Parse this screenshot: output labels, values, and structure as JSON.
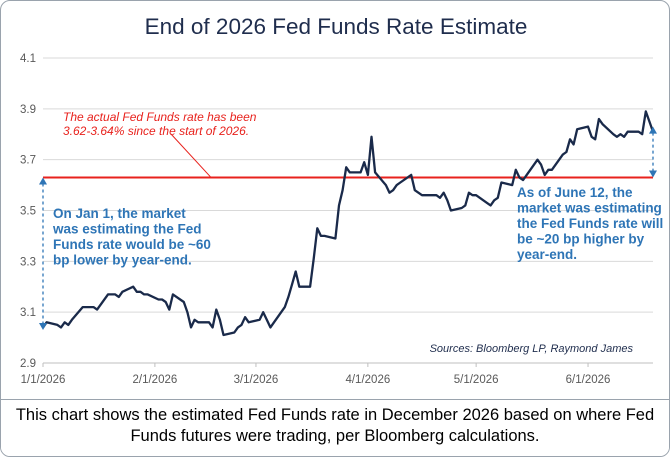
{
  "chart_data": {
    "type": "line",
    "title": "End of 2026 Fed Funds Rate Estimate",
    "xlabel": "",
    "ylabel": "",
    "x_tick_labels": [
      "1/1/2026",
      "2/1/2026",
      "3/1/2026",
      "4/1/2026",
      "5/1/2026",
      "6/1/2026"
    ],
    "y_tick_labels": [
      "2.9",
      "3.1",
      "3.3",
      "3.5",
      "3.7",
      "3.9",
      "4.1"
    ],
    "ylim": [
      2.9,
      4.1
    ],
    "xlim": [
      "2026-01-01",
      "2026-06-19"
    ],
    "grid": "horizontal",
    "series": [
      {
        "color": "#1a2a4a",
        "points": [
          [
            "2026-01-01",
            3.04
          ],
          [
            "2026-01-02",
            3.06
          ],
          [
            "2026-01-05",
            3.05
          ],
          [
            "2026-01-06",
            3.04
          ],
          [
            "2026-01-07",
            3.06
          ],
          [
            "2026-01-08",
            3.05
          ],
          [
            "2026-01-09",
            3.07
          ],
          [
            "2026-01-12",
            3.12
          ],
          [
            "2026-01-13",
            3.12
          ],
          [
            "2026-01-14",
            3.12
          ],
          [
            "2026-01-15",
            3.12
          ],
          [
            "2026-01-16",
            3.11
          ],
          [
            "2026-01-19",
            3.17
          ],
          [
            "2026-01-20",
            3.17
          ],
          [
            "2026-01-21",
            3.17
          ],
          [
            "2026-01-22",
            3.16
          ],
          [
            "2026-01-23",
            3.18
          ],
          [
            "2026-01-26",
            3.2
          ],
          [
            "2026-01-27",
            3.18
          ],
          [
            "2026-01-28",
            3.18
          ],
          [
            "2026-01-29",
            3.17
          ],
          [
            "2026-01-30",
            3.17
          ],
          [
            "2026-02-02",
            3.15
          ],
          [
            "2026-02-03",
            3.15
          ],
          [
            "2026-02-04",
            3.14
          ],
          [
            "2026-02-05",
            3.11
          ],
          [
            "2026-02-06",
            3.17
          ],
          [
            "2026-02-09",
            3.14
          ],
          [
            "2026-02-10",
            3.1
          ],
          [
            "2026-02-11",
            3.04
          ],
          [
            "2026-02-12",
            3.07
          ],
          [
            "2026-02-13",
            3.06
          ],
          [
            "2026-02-16",
            3.06
          ],
          [
            "2026-02-17",
            3.04
          ],
          [
            "2026-02-18",
            3.11
          ],
          [
            "2026-02-19",
            3.07
          ],
          [
            "2026-02-20",
            3.01
          ],
          [
            "2026-02-23",
            3.02
          ],
          [
            "2026-02-24",
            3.04
          ],
          [
            "2026-02-25",
            3.05
          ],
          [
            "2026-02-26",
            3.08
          ],
          [
            "2026-02-27",
            3.06
          ],
          [
            "2026-03-02",
            3.07
          ],
          [
            "2026-03-03",
            3.1
          ],
          [
            "2026-03-04",
            3.07
          ],
          [
            "2026-03-05",
            3.04
          ],
          [
            "2026-03-06",
            3.06
          ],
          [
            "2026-03-09",
            3.12
          ],
          [
            "2026-03-10",
            3.16
          ],
          [
            "2026-03-11",
            3.21
          ],
          [
            "2026-03-12",
            3.26
          ],
          [
            "2026-03-13",
            3.2
          ],
          [
            "2026-03-16",
            3.2
          ],
          [
            "2026-03-17",
            3.31
          ],
          [
            "2026-03-18",
            3.43
          ],
          [
            "2026-03-19",
            3.4
          ],
          [
            "2026-03-20",
            3.4
          ],
          [
            "2026-03-23",
            3.39
          ],
          [
            "2026-03-24",
            3.52
          ],
          [
            "2026-03-25",
            3.58
          ],
          [
            "2026-03-26",
            3.67
          ],
          [
            "2026-03-27",
            3.65
          ],
          [
            "2026-03-30",
            3.65
          ],
          [
            "2026-03-31",
            3.69
          ],
          [
            "2026-04-01",
            3.64
          ],
          [
            "2026-04-02",
            3.79
          ],
          [
            "2026-04-03",
            3.65
          ],
          [
            "2026-04-06",
            3.6
          ],
          [
            "2026-04-07",
            3.57
          ],
          [
            "2026-04-08",
            3.58
          ],
          [
            "2026-04-09",
            3.6
          ],
          [
            "2026-04-10",
            3.61
          ],
          [
            "2026-04-13",
            3.64
          ],
          [
            "2026-04-14",
            3.58
          ],
          [
            "2026-04-15",
            3.57
          ],
          [
            "2026-04-16",
            3.56
          ],
          [
            "2026-04-17",
            3.56
          ],
          [
            "2026-04-20",
            3.56
          ],
          [
            "2026-04-21",
            3.55
          ],
          [
            "2026-04-22",
            3.57
          ],
          [
            "2026-04-23",
            3.54
          ],
          [
            "2026-04-24",
            3.5
          ],
          [
            "2026-04-27",
            3.51
          ],
          [
            "2026-04-28",
            3.52
          ],
          [
            "2026-04-29",
            3.57
          ],
          [
            "2026-04-30",
            3.56
          ],
          [
            "2026-05-01",
            3.56
          ],
          [
            "2026-05-04",
            3.53
          ],
          [
            "2026-05-05",
            3.52
          ],
          [
            "2026-05-06",
            3.54
          ],
          [
            "2026-05-07",
            3.55
          ],
          [
            "2026-05-08",
            3.61
          ],
          [
            "2026-05-11",
            3.6
          ],
          [
            "2026-05-12",
            3.66
          ],
          [
            "2026-05-13",
            3.63
          ],
          [
            "2026-05-14",
            3.62
          ],
          [
            "2026-05-15",
            3.64
          ],
          [
            "2026-05-18",
            3.7
          ],
          [
            "2026-05-19",
            3.68
          ],
          [
            "2026-05-20",
            3.64
          ],
          [
            "2026-05-21",
            3.66
          ],
          [
            "2026-05-22",
            3.66
          ],
          [
            "2026-05-25",
            3.72
          ],
          [
            "2026-05-26",
            3.73
          ],
          [
            "2026-05-27",
            3.78
          ],
          [
            "2026-05-28",
            3.76
          ],
          [
            "2026-05-29",
            3.82
          ],
          [
            "2026-06-01",
            3.83
          ],
          [
            "2026-06-02",
            3.79
          ],
          [
            "2026-06-03",
            3.78
          ],
          [
            "2026-06-04",
            3.86
          ],
          [
            "2026-06-05",
            3.84
          ],
          [
            "2026-06-08",
            3.8
          ],
          [
            "2026-06-09",
            3.79
          ],
          [
            "2026-06-10",
            3.8
          ],
          [
            "2026-06-11",
            3.79
          ],
          [
            "2026-06-12",
            3.81
          ],
          [
            "2026-06-15",
            3.81
          ],
          [
            "2026-06-16",
            3.8
          ],
          [
            "2026-06-17",
            3.89
          ],
          [
            "2026-06-18",
            3.85
          ],
          [
            "2026-06-19",
            3.81
          ]
        ]
      }
    ],
    "reference_line": {
      "y": 3.63,
      "color": "#e8221d"
    },
    "annotations": {
      "actual_rate": [
        "The actual Fed Funds rate has been",
        "3.62-3.64% since the start of 2026."
      ],
      "jan1": [
        "On Jan 1, the market",
        "was estimating the Fed",
        "Funds rate would be ~60",
        "bp lower by year-end."
      ],
      "june12": [
        "As of June 12, the",
        "market was estimating",
        "the Fed Funds rate will",
        "be ~20 bp higher by",
        "year-end."
      ]
    },
    "arrows": [
      {
        "date": "2026-01-01",
        "from": 3.63,
        "to": 3.03,
        "color": "#2e75b6"
      },
      {
        "date": "2026-06-19",
        "from": 3.63,
        "to": 3.83,
        "color": "#2e75b6"
      }
    ],
    "source": "Sources: Bloomberg LP, Raymond James"
  },
  "caption": "This chart shows the estimated Fed Funds rate in December 2026 based on where Fed Funds futures were trading, per Bloomberg calculations.",
  "colors": {
    "line": "#1a2a4a",
    "reference": "#e8221d",
    "annotation_blue": "#2e75b6",
    "title": "#1f2d4d",
    "grid": "#d9d9d9",
    "axis_text": "#595959"
  }
}
